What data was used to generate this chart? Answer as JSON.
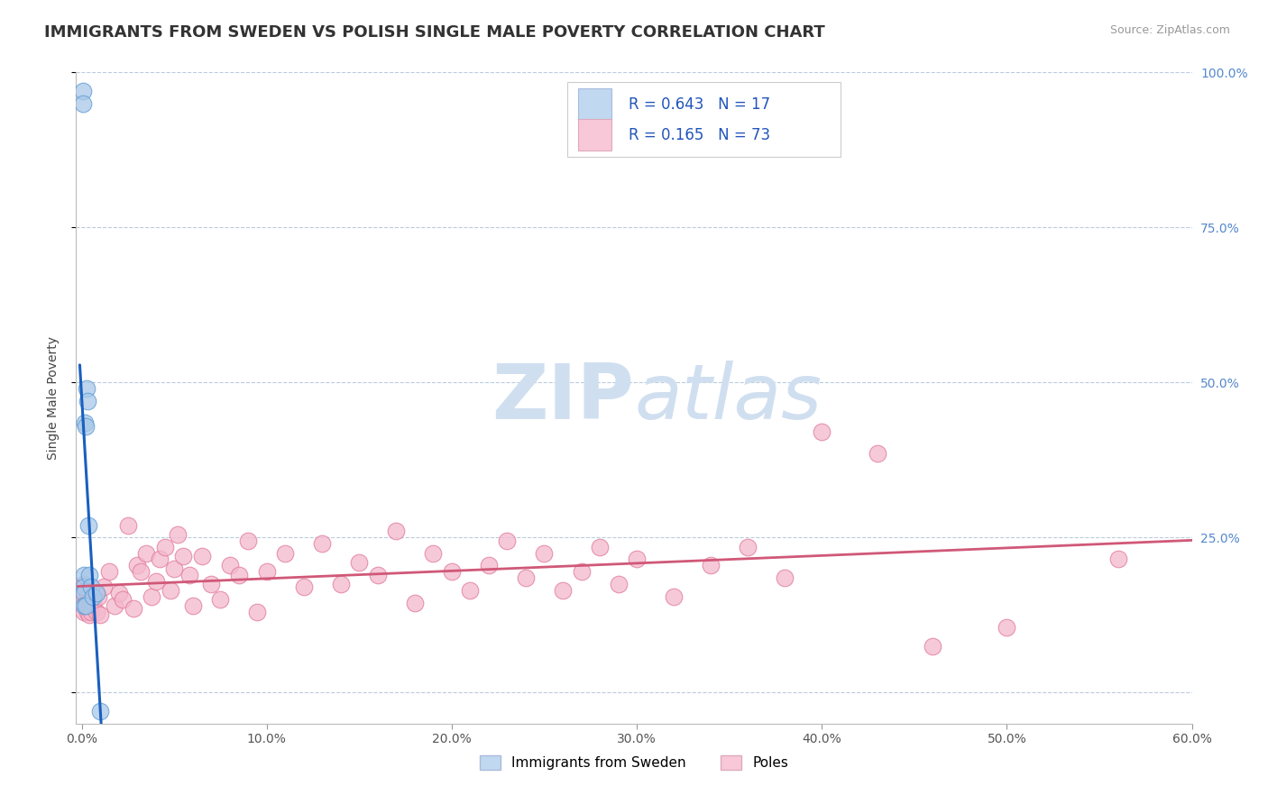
{
  "title": "IMMIGRANTS FROM SWEDEN VS POLISH SINGLE MALE POVERTY CORRELATION CHART",
  "source": "Source: ZipAtlas.com",
  "xlabel_label": "Immigrants from Sweden",
  "ylabel_label": "Single Male Poverty",
  "xlim": [
    -0.003,
    0.6
  ],
  "ylim": [
    -0.05,
    1.0
  ],
  "xticks": [
    0.0,
    0.1,
    0.2,
    0.3,
    0.4,
    0.5,
    0.6
  ],
  "yticks": [
    0.0,
    0.25,
    0.5,
    0.75,
    1.0
  ],
  "xticklabels": [
    "0.0%",
    "10.0%",
    "20.0%",
    "30.0%",
    "40.0%",
    "50.0%",
    "60.0%"
  ],
  "yticklabels_right": [
    "",
    "25.0%",
    "50.0%",
    "75.0%",
    "100.0%"
  ],
  "sweden_R": 0.643,
  "sweden_N": 17,
  "poles_R": 0.165,
  "poles_N": 73,
  "sweden_color": "#A8C8E8",
  "sweden_edge": "#5A9AD4",
  "sweden_line_color": "#1A5FBF",
  "poles_color": "#F4B8CC",
  "poles_edge": "#E07898",
  "poles_line_color": "#D05878",
  "legend_sweden_color": "#C0D8F0",
  "legend_poles_color": "#F8C8D8",
  "watermark_color": "#D0DFF0",
  "background_color": "#FFFFFF",
  "sweden_x": [
    0.0008,
    0.0009,
    0.001,
    0.001,
    0.001,
    0.001,
    0.0015,
    0.002,
    0.002,
    0.0025,
    0.003,
    0.0035,
    0.004,
    0.005,
    0.006,
    0.008,
    0.01
  ],
  "sweden_y": [
    0.97,
    0.95,
    0.19,
    0.17,
    0.16,
    0.14,
    0.435,
    0.43,
    0.14,
    0.49,
    0.47,
    0.27,
    0.19,
    0.17,
    0.155,
    0.16,
    -0.03
  ],
  "poles_x": [
    0.001,
    0.001,
    0.001,
    0.002,
    0.002,
    0.003,
    0.003,
    0.004,
    0.004,
    0.005,
    0.005,
    0.006,
    0.007,
    0.008,
    0.009,
    0.01,
    0.012,
    0.015,
    0.018,
    0.02,
    0.022,
    0.025,
    0.028,
    0.03,
    0.032,
    0.035,
    0.038,
    0.04,
    0.042,
    0.045,
    0.048,
    0.05,
    0.052,
    0.055,
    0.058,
    0.06,
    0.065,
    0.07,
    0.075,
    0.08,
    0.085,
    0.09,
    0.095,
    0.1,
    0.11,
    0.12,
    0.13,
    0.14,
    0.15,
    0.16,
    0.17,
    0.18,
    0.19,
    0.2,
    0.21,
    0.22,
    0.23,
    0.24,
    0.25,
    0.26,
    0.27,
    0.28,
    0.29,
    0.3,
    0.32,
    0.34,
    0.36,
    0.38,
    0.4,
    0.43,
    0.46,
    0.5,
    0.56
  ],
  "poles_y": [
    0.175,
    0.155,
    0.13,
    0.165,
    0.145,
    0.16,
    0.13,
    0.15,
    0.125,
    0.155,
    0.13,
    0.145,
    0.16,
    0.13,
    0.155,
    0.125,
    0.17,
    0.195,
    0.14,
    0.16,
    0.15,
    0.27,
    0.135,
    0.205,
    0.195,
    0.225,
    0.155,
    0.18,
    0.215,
    0.235,
    0.165,
    0.2,
    0.255,
    0.22,
    0.19,
    0.14,
    0.22,
    0.175,
    0.15,
    0.205,
    0.19,
    0.245,
    0.13,
    0.195,
    0.225,
    0.17,
    0.24,
    0.175,
    0.21,
    0.19,
    0.26,
    0.145,
    0.225,
    0.195,
    0.165,
    0.205,
    0.245,
    0.185,
    0.225,
    0.165,
    0.195,
    0.235,
    0.175,
    0.215,
    0.155,
    0.205,
    0.235,
    0.185,
    0.42,
    0.385,
    0.075,
    0.105,
    0.215
  ],
  "title_fontsize": 13,
  "axis_label_fontsize": 10,
  "tick_fontsize": 10,
  "legend_fontsize": 13
}
